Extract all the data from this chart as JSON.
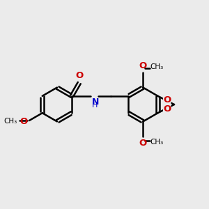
{
  "bg_color": "#ebebeb",
  "bond_color": "#000000",
  "bond_width": 1.8,
  "o_color": "#cc0000",
  "n_color": "#0000cc",
  "font_size": 8.5,
  "fig_size": [
    3.0,
    3.0
  ],
  "dpi": 100,
  "xlim": [
    0,
    10
  ],
  "ylim": [
    1,
    9
  ]
}
